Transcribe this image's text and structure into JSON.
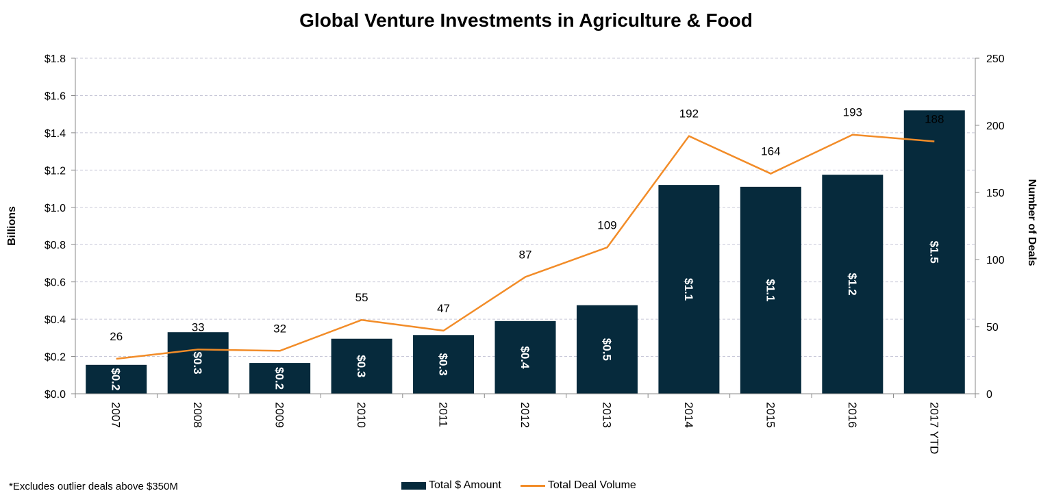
{
  "chart_data": {
    "type": "bar",
    "title": "Global Venture Investments in Agriculture & Food",
    "ylabel": "Billions",
    "y2label": "Number of Deals",
    "ylim": [
      0,
      1.8
    ],
    "y2lim": [
      0,
      250
    ],
    "yticks": [
      "$0.0",
      "$0.2",
      "$0.4",
      "$0.6",
      "$0.8",
      "$1.0",
      "$1.2",
      "$1.4",
      "$1.6",
      "$1.8"
    ],
    "y2ticks": [
      "0",
      "50",
      "100",
      "150",
      "200",
      "250"
    ],
    "categories": [
      "2007",
      "2008",
      "2009",
      "2010",
      "2011",
      "2012",
      "2013",
      "2014",
      "2015",
      "2016",
      "2017 YTD"
    ],
    "series": [
      {
        "name": "Total $ Amount",
        "type": "bar",
        "axis": "left",
        "color": "#062a3c",
        "values": [
          0.155,
          0.33,
          0.165,
          0.295,
          0.315,
          0.39,
          0.475,
          1.12,
          1.11,
          1.175,
          1.52
        ],
        "labels": [
          "$0.2",
          "$0.3",
          "$0.2",
          "$0.3",
          "$0.3",
          "$0.4",
          "$0.5",
          "$1.1",
          "$1.1",
          "$1.2",
          "$1.5"
        ]
      },
      {
        "name": "Total Deal Volume",
        "type": "line",
        "axis": "right",
        "color": "#f28c28",
        "values": [
          26,
          33,
          32,
          55,
          47,
          87,
          109,
          192,
          164,
          193,
          188
        ],
        "labels": [
          "26",
          "33",
          "32",
          "55",
          "47",
          "87",
          "109",
          "192",
          "164",
          "193",
          "188"
        ]
      }
    ],
    "grid": true,
    "legend_position": "bottom"
  },
  "footnote": "*Excludes outlier deals above $350M"
}
